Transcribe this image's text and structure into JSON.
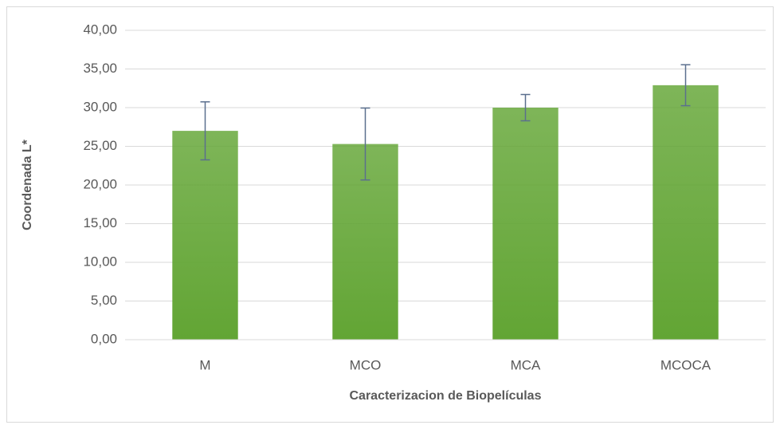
{
  "chart_data": {
    "type": "bar",
    "x_label": "Caracterizacion de Biopelículas",
    "y_label": "Coordenada L*",
    "categories": [
      "M",
      "MCO",
      "MCA",
      "MCOCA"
    ],
    "values": [
      27.0,
      25.3,
      30.0,
      32.9
    ],
    "errors": [
      3.75,
      4.65,
      1.7,
      2.65
    ],
    "color": "#62a534",
    "error_color": "#5b6f8e",
    "ylim": [
      0,
      40
    ],
    "yticks": [
      {
        "value": 0,
        "label": "0,00"
      },
      {
        "value": 5,
        "label": "5,00"
      },
      {
        "value": 10,
        "label": "10,00"
      },
      {
        "value": 15,
        "label": "15,00"
      },
      {
        "value": 20,
        "label": "20,00"
      },
      {
        "value": 25,
        "label": "25,00"
      },
      {
        "value": 30,
        "label": "30,00"
      },
      {
        "value": 35,
        "label": "35,00"
      },
      {
        "value": 40,
        "label": "40,00"
      }
    ],
    "grid": true
  }
}
